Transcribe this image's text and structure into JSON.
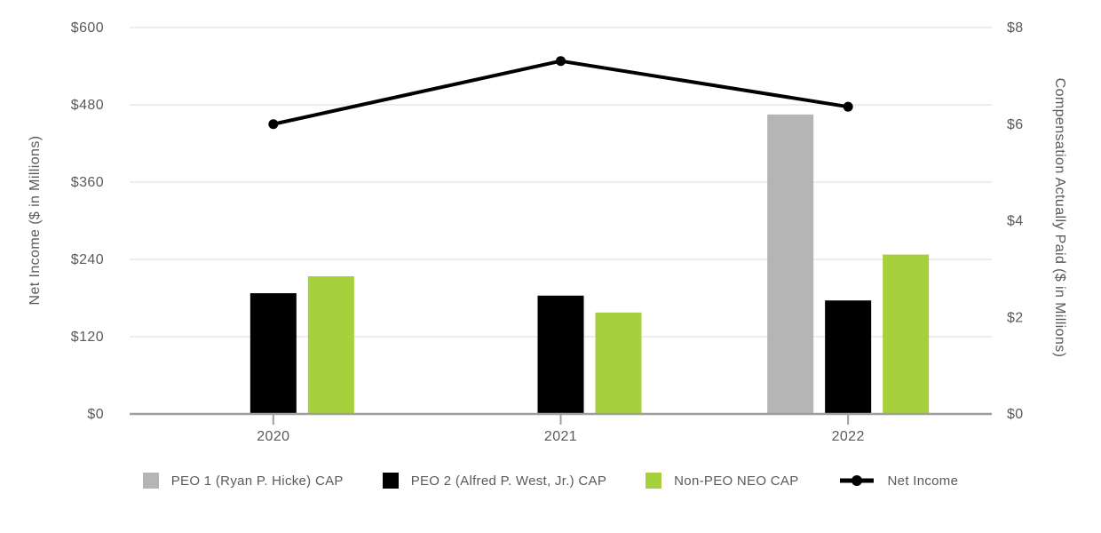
{
  "chart_data": {
    "type": "bar",
    "subtype": "grouped bars with overlaid line (dual axis combo)",
    "categories": [
      "2020",
      "2021",
      "2022"
    ],
    "series": [
      {
        "name": "PEO 1 (Ryan P. Hicke) CAP",
        "kind": "bar",
        "axis": "right",
        "color": "#b5b5b5",
        "values": [
          null,
          null,
          6.2
        ]
      },
      {
        "name": "PEO 2 (Alfred P. West, Jr.) CAP",
        "kind": "bar",
        "axis": "right",
        "color": "#000000",
        "values": [
          2.5,
          2.45,
          2.35
        ]
      },
      {
        "name": "Non-PEO NEO CAP",
        "kind": "bar",
        "axis": "right",
        "color": "#a6d03c",
        "values": [
          2.85,
          2.1,
          3.3
        ]
      },
      {
        "name": "Net Income",
        "kind": "line",
        "axis": "left",
        "color": "#000000",
        "values": [
          450,
          548,
          477
        ]
      }
    ],
    "left_axis": {
      "label": "Net Income ($ in Millions)",
      "min": 0,
      "max": 600,
      "step": 120,
      "tick_labels": [
        "$0",
        "$120",
        "$240",
        "$360",
        "$480",
        "$600"
      ]
    },
    "right_axis": {
      "label": "Compensation Actually Paid ($ in Millions)",
      "min": 0,
      "max": 8,
      "step": 2,
      "tick_labels": [
        "$0",
        "$2",
        "$4",
        "$6",
        "$8"
      ]
    },
    "x_axis": {
      "tick_labels": [
        "2020",
        "2021",
        "2022"
      ]
    },
    "grid": "horizontal gridlines at left-axis ticks, no vertical gridlines",
    "legend_position": "bottom"
  },
  "colors": {
    "background": "#ffffff",
    "grid_line": "#e7e7e7",
    "axis_line": "#9e9e9e",
    "tick_text": "#5a5a5a",
    "bar_gray": "#b5b5b5",
    "bar_black": "#000000",
    "bar_green": "#a6d03c",
    "line": "#000000"
  }
}
